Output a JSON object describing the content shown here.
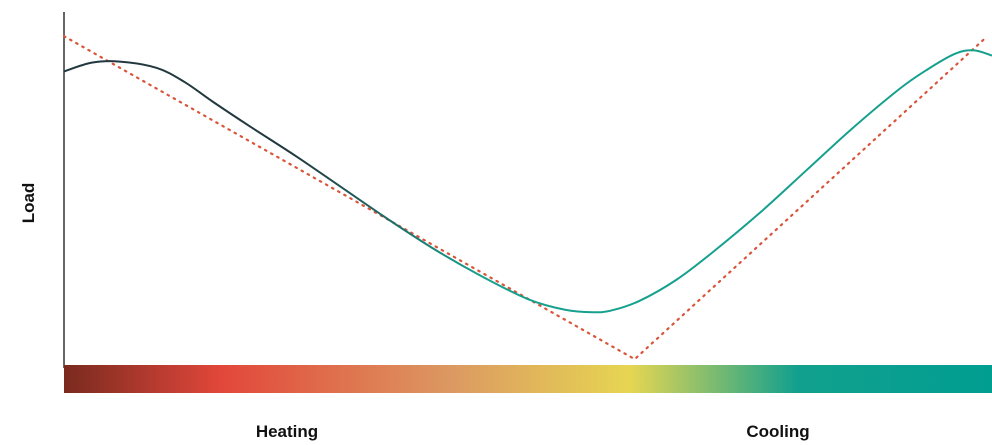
{
  "chart_data": {
    "type": "line",
    "title": "",
    "ylabel": "Load",
    "xlabel": "",
    "x_range": [
      0,
      1
    ],
    "y_range": [
      0,
      1
    ],
    "grid": false,
    "legend": "none",
    "band_labels": [
      "Heating",
      "Cooling"
    ],
    "series": [
      {
        "style": "solid",
        "colors": [
          "#22383f",
          "#16a08d"
        ],
        "x": [
          0.0,
          0.03,
          0.06,
          0.1,
          0.13,
          0.16,
          0.2,
          0.25,
          0.3,
          0.35,
          0.4,
          0.45,
          0.5,
          0.54,
          0.57,
          0.59,
          0.62,
          0.66,
          0.7,
          0.75,
          0.8,
          0.85,
          0.9,
          0.93,
          0.96,
          0.98,
          1.0
        ],
        "y": [
          0.84,
          0.865,
          0.868,
          0.85,
          0.81,
          0.755,
          0.685,
          0.6,
          0.51,
          0.42,
          0.335,
          0.26,
          0.195,
          0.165,
          0.158,
          0.163,
          0.19,
          0.25,
          0.33,
          0.44,
          0.56,
          0.68,
          0.79,
          0.845,
          0.89,
          0.9,
          0.885
        ]
      },
      {
        "style": "dotted",
        "color": "#d9553a",
        "x": [
          0.0,
          0.615,
          0.995
        ],
        "y": [
          0.94,
          0.025,
          0.94
        ]
      }
    ],
    "colorbar": {
      "stops": [
        {
          "offset": 0.0,
          "color": "#7a2a1f"
        },
        {
          "offset": 0.17,
          "color": "#e2473a"
        },
        {
          "offset": 0.42,
          "color": "#dc9a62"
        },
        {
          "offset": 0.61,
          "color": "#e6d652"
        },
        {
          "offset": 0.79,
          "color": "#12a08e"
        },
        {
          "offset": 1.0,
          "color": "#009e91"
        }
      ]
    }
  }
}
